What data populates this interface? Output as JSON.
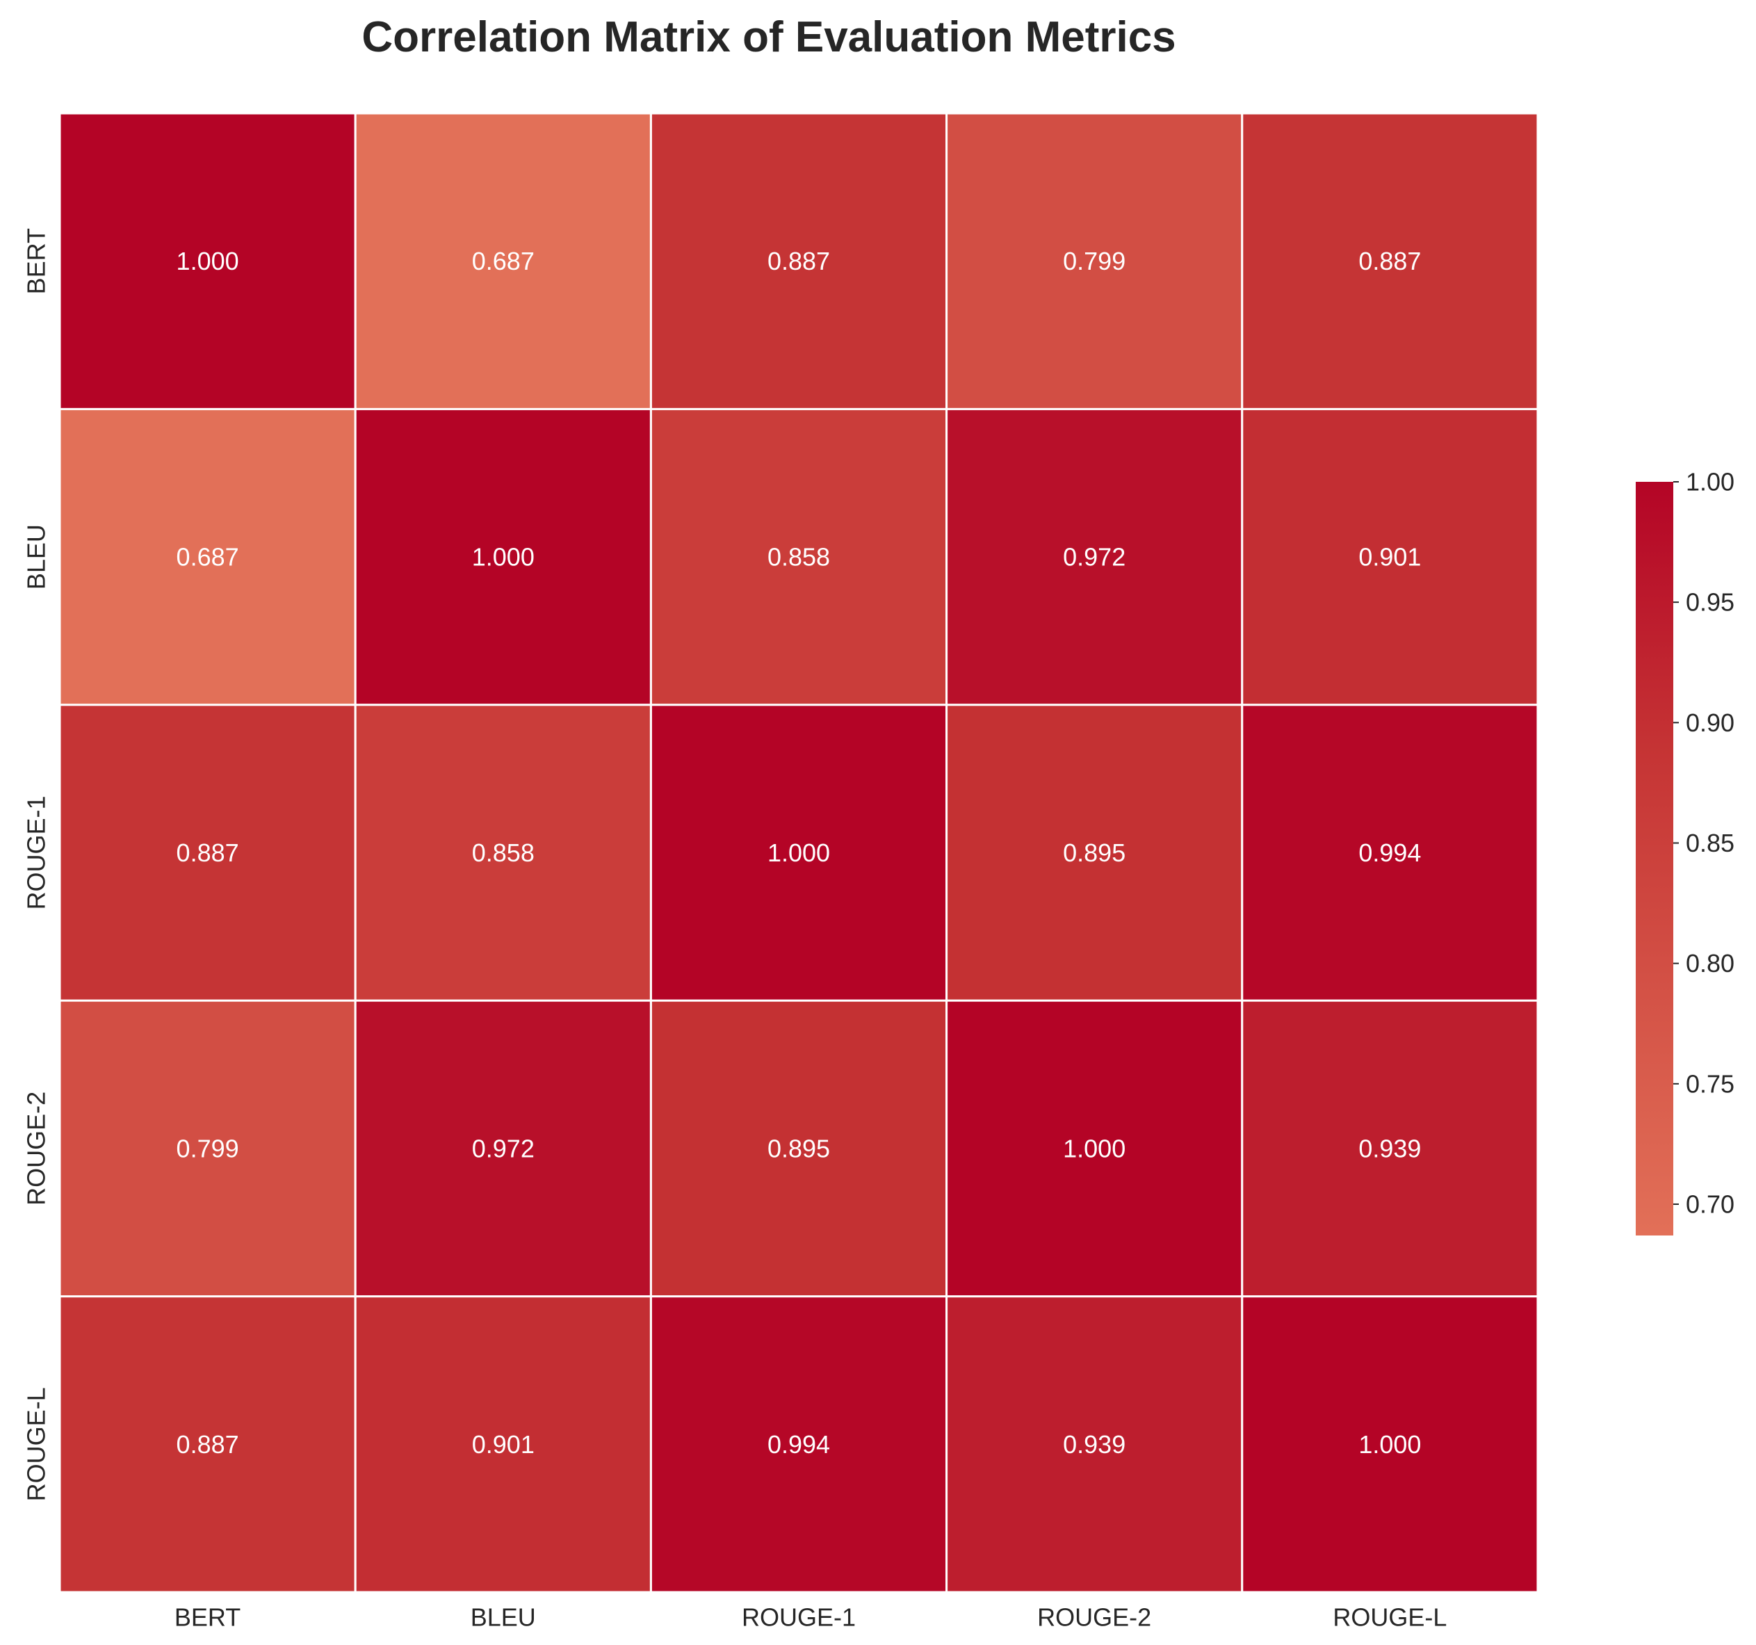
{
  "chart_data": {
    "type": "heatmap",
    "title": "Correlation Matrix of Evaluation Metrics",
    "xlabel": "",
    "ylabel": "",
    "row_labels": [
      "BERT",
      "BLEU",
      "ROUGE-1",
      "ROUGE-2",
      "ROUGE-L"
    ],
    "col_labels": [
      "BERT",
      "BLEU",
      "ROUGE-1",
      "ROUGE-2",
      "ROUGE-L"
    ],
    "values": [
      [
        1.0,
        0.687,
        0.887,
        0.799,
        0.887
      ],
      [
        0.687,
        1.0,
        0.858,
        0.972,
        0.901
      ],
      [
        0.887,
        0.858,
        1.0,
        0.895,
        0.994
      ],
      [
        0.799,
        0.972,
        0.895,
        1.0,
        0.939
      ],
      [
        0.887,
        0.901,
        0.994,
        0.939,
        1.0
      ]
    ],
    "value_format": "3 decimals",
    "colorbar": {
      "min": 0.687,
      "max": 1.0,
      "ticks": [
        0.7,
        0.75,
        0.8,
        0.85,
        0.9,
        0.95,
        1.0
      ],
      "tick_labels": [
        "0.70",
        "0.75",
        "0.80",
        "0.85",
        "0.90",
        "0.95",
        "1.00"
      ],
      "color_low": "#e27058",
      "color_mid": "#c53334",
      "color_high": "#b40426"
    },
    "cell_text_color": "#ffffff",
    "grid_line_color": "#ffffff"
  }
}
